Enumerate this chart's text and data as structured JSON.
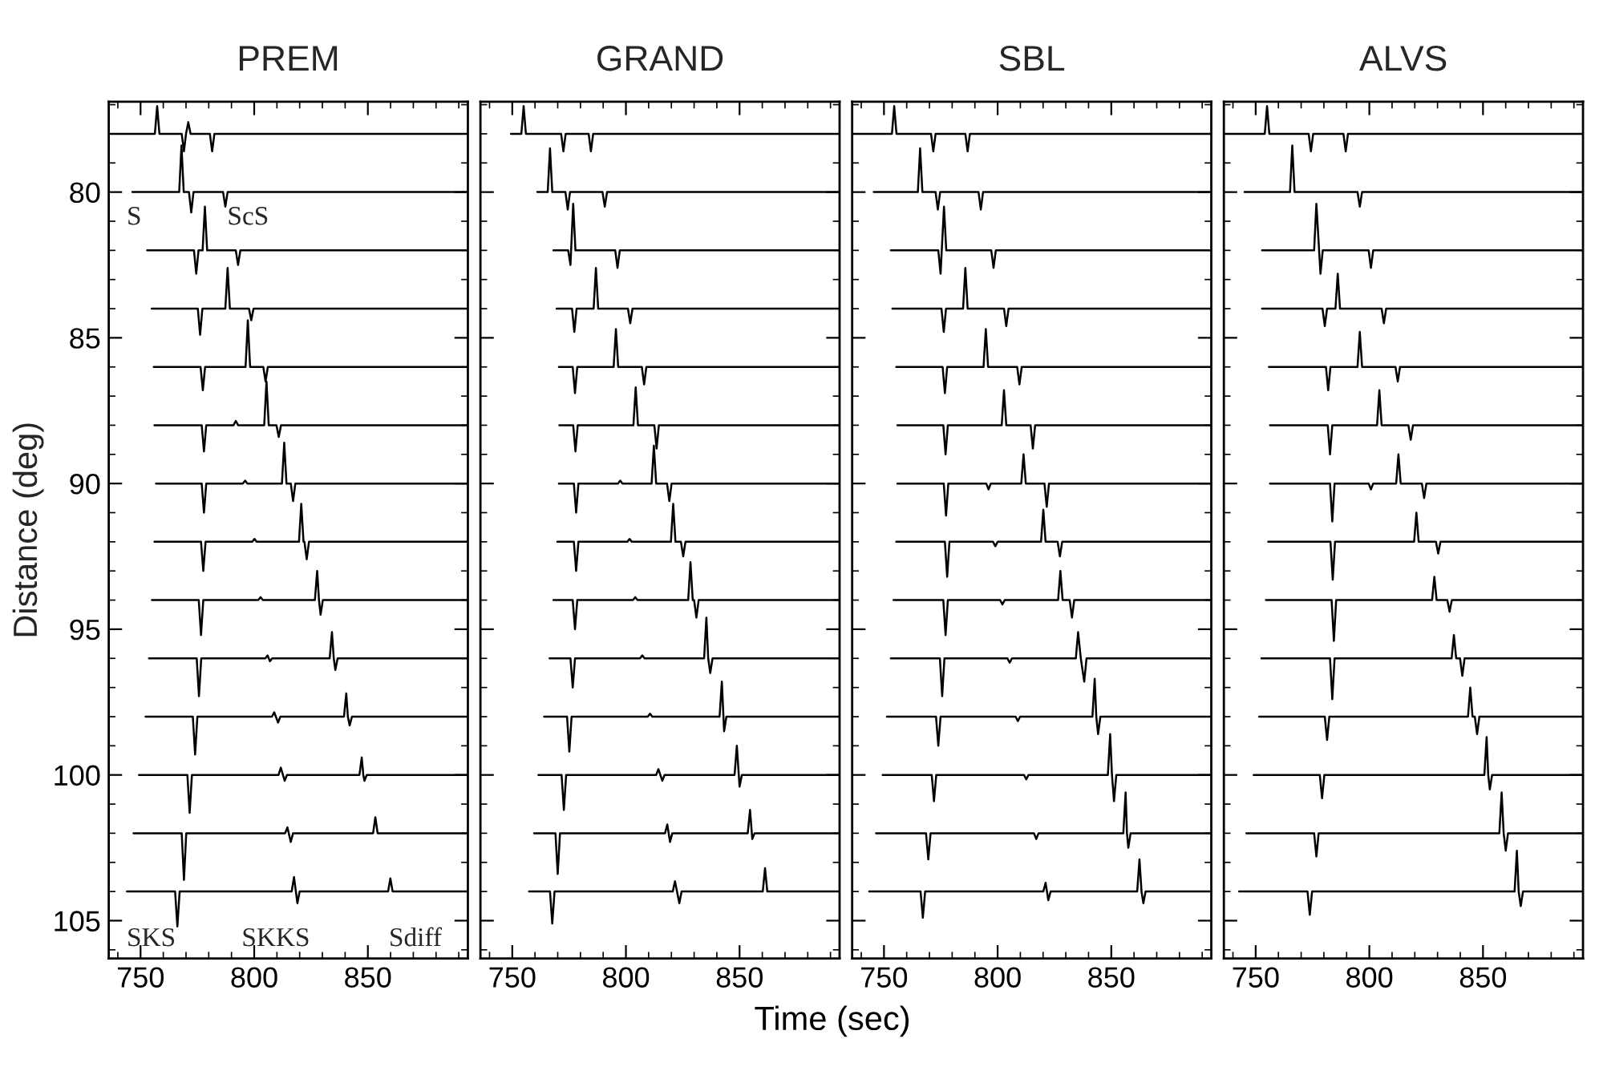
{
  "chart_data": [
    {
      "type": "line",
      "title": "PREM",
      "ylabel": "Distance (deg)",
      "xlim": [
        736,
        894
      ],
      "xticks": [
        750,
        800,
        850
      ],
      "ylim": [
        106.3,
        76.9
      ],
      "yticks": [
        80,
        85,
        90,
        95,
        100,
        105
      ],
      "annotations": [
        "S",
        "ScS",
        "SKS",
        "SKKS",
        "Sdiff"
      ],
      "series": [
        {
          "color": "#000000",
          "x": [
            736,
            756.3,
            757.3,
            758.3,
            768.1,
            769.1,
            770,
            771,
            772,
            780.5,
            781.5,
            782.5,
            894
          ],
          "values": [
            78,
            78,
            77.05,
            78,
            78,
            78.6,
            78,
            77.6,
            78,
            78,
            78.6,
            78,
            78
          ]
        },
        {
          "color": "#000000",
          "x": [
            746.4,
            767,
            768,
            769,
            771.3,
            772.3,
            773.3,
            786.3,
            787.3,
            788.3,
            894
          ],
          "values": [
            80,
            80,
            78.4,
            80,
            80,
            80.7,
            80,
            80,
            80.5,
            80,
            80
          ]
        },
        {
          "color": "#000000",
          "x": [
            752.9,
            773.5,
            774.5,
            775.5,
            777.3,
            778.3,
            779.3,
            791.9,
            792.9,
            793.9,
            894
          ],
          "values": [
            82,
            82,
            82.8,
            82,
            82,
            80.5,
            82,
            82,
            82.5,
            82,
            82
          ]
        },
        {
          "color": "#000000",
          "x": [
            754.9,
            775.2,
            776.2,
            777.2,
            787.3,
            788.3,
            789.3,
            797.7,
            798.7,
            799.7,
            894
          ],
          "values": [
            84,
            84,
            84.9,
            84,
            84,
            82.6,
            84,
            84,
            84.4,
            84,
            84
          ]
        },
        {
          "color": "#000000",
          "x": [
            755.8,
            776.4,
            777.4,
            778.4,
            796.2,
            797.2,
            798.2,
            804,
            805,
            806,
            894
          ],
          "values": [
            86,
            86,
            86.8,
            86,
            86,
            84.4,
            86,
            86,
            86.5,
            86,
            86
          ]
        },
        {
          "color": "#000000",
          "x": [
            756.1,
            776.9,
            777.9,
            778.9,
            790.9,
            791.9,
            792.9,
            804.4,
            805.4,
            806.4,
            809.8,
            810.8,
            811.8,
            894
          ],
          "values": [
            88,
            88,
            88.9,
            88,
            88,
            87.85,
            88,
            88,
            86.5,
            88,
            88,
            88.4,
            88,
            88
          ]
        },
        {
          "color": "#000000",
          "x": [
            756.8,
            776.9,
            777.9,
            778.9,
            795,
            796,
            797,
            812.2,
            813.2,
            814.2,
            816.1,
            817.1,
            818.1,
            894
          ],
          "values": [
            90,
            90,
            91,
            90,
            90,
            89.9,
            90,
            90,
            88.6,
            90,
            90,
            90.6,
            90,
            90
          ]
        },
        {
          "color": "#000000",
          "x": [
            756.1,
            776.6,
            777.6,
            778.6,
            799.1,
            800.1,
            801.1,
            819.7,
            820.7,
            821.7,
            822.1,
            823.1,
            824.1,
            894
          ],
          "values": [
            92,
            92,
            93,
            92,
            92,
            91.9,
            92,
            92,
            90.7,
            92,
            92,
            92.6,
            92,
            92
          ]
        },
        {
          "color": "#000000",
          "x": [
            755,
            775.6,
            776.6,
            777.6,
            801.8,
            802.8,
            803.8,
            826.7,
            827.7,
            828.5,
            829.2,
            830.2,
            894
          ],
          "values": [
            94,
            94,
            95.2,
            94,
            94,
            93.9,
            94,
            94,
            93,
            94,
            94.5,
            94,
            94
          ]
        },
        {
          "color": "#000000",
          "x": [
            753.7,
            774.7,
            775.7,
            776.7,
            804.9,
            805.9,
            806.9,
            807.9,
            833.2,
            834.2,
            835,
            835.7,
            836.7,
            894
          ],
          "values": [
            96,
            96,
            97.3,
            96,
            96,
            95.9,
            96.1,
            96,
            96,
            95.1,
            96,
            96.4,
            96,
            96
          ]
        },
        {
          "color": "#000000",
          "x": [
            752.2,
            773,
            774,
            775,
            807.8,
            808.8,
            810.5,
            811.5,
            839.5,
            840.5,
            841.2,
            842,
            843,
            894
          ],
          "values": [
            98,
            98,
            99.3,
            98,
            98,
            97.85,
            98.2,
            98,
            98,
            97.2,
            98,
            98.3,
            98,
            98
          ]
        },
        {
          "color": "#000000",
          "x": [
            749.3,
            770.6,
            771.6,
            772.6,
            810.7,
            811.7,
            813.4,
            814.4,
            846.3,
            847.3,
            848,
            848.5,
            849.5,
            894
          ],
          "values": [
            100,
            100,
            101.3,
            100,
            100,
            99.75,
            100.2,
            100,
            100,
            99.4,
            100,
            100.2,
            100,
            100
          ]
        },
        {
          "color": "#000000",
          "x": [
            746.9,
            768.1,
            769.1,
            770.1,
            813.6,
            814.6,
            816.1,
            817.1,
            852.3,
            853.3,
            854.3,
            894
          ],
          "values": [
            102,
            102,
            103.6,
            102,
            102,
            101.8,
            102.3,
            102,
            102,
            101.45,
            102,
            102
          ]
        },
        {
          "color": "#000000",
          "x": [
            744,
            765.2,
            766.2,
            767.2,
            816.5,
            817.5,
            819,
            820,
            858.9,
            859.9,
            860.9,
            894
          ],
          "values": [
            104,
            104,
            105.2,
            104,
            104,
            103.5,
            104.4,
            104,
            104,
            103.55,
            104,
            104
          ]
        }
      ]
    },
    {
      "type": "line",
      "title": "GRAND",
      "xlabel": "Time (sec)",
      "xlim": [
        736,
        894
      ],
      "xticks": [
        750,
        800,
        850
      ],
      "ylim": [
        106.3,
        76.9
      ],
      "yticks": [
        80,
        85,
        90,
        95,
        100,
        105
      ],
      "tick_labels": "x",
      "series": [
        {
          "color": "#000000",
          "x": [
            749.4,
            754,
            755,
            756,
            771.5,
            772.5,
            773.5,
            783.6,
            784.6,
            785.6,
            894
          ],
          "values": [
            78,
            78,
            77.05,
            78,
            78,
            78.6,
            78,
            78,
            78.6,
            78,
            78
          ]
        },
        {
          "color": "#000000",
          "x": [
            761,
            765.6,
            766.6,
            767.6,
            773.4,
            774.4,
            775.4,
            789.7,
            790.7,
            791.7,
            894
          ],
          "values": [
            80,
            80,
            78.5,
            80,
            80,
            80.6,
            80,
            80,
            80.5,
            80,
            80
          ]
        },
        {
          "color": "#000000",
          "x": [
            768.1,
            774.6,
            775.6,
            776.8,
            777.8,
            795.3,
            796.3,
            797.3,
            894
          ],
          "values": [
            82,
            82,
            82.5,
            80.4,
            82,
            82,
            82.6,
            82,
            82
          ]
        },
        {
          "color": "#000000",
          "x": [
            769.5,
            776.3,
            777.3,
            778.3,
            785.8,
            786.8,
            787.8,
            800.9,
            801.9,
            802.9,
            894
          ],
          "values": [
            84,
            84,
            84.8,
            84,
            84,
            82.6,
            84,
            84,
            84.5,
            84,
            84
          ]
        },
        {
          "color": "#000000",
          "x": [
            770.5,
            776.6,
            777.6,
            778.6,
            794.6,
            795.6,
            796.6,
            807,
            808,
            809,
            894
          ],
          "values": [
            86,
            86,
            86.9,
            86,
            86,
            84.7,
            86,
            86,
            86.6,
            86,
            86
          ]
        },
        {
          "color": "#000000",
          "x": [
            770.7,
            776.8,
            777.8,
            778.8,
            803.3,
            804.3,
            805.3,
            812.5,
            813.5,
            814.5,
            894
          ],
          "values": [
            88,
            88,
            88.9,
            88,
            88,
            86.7,
            88,
            88,
            88.8,
            88,
            88
          ]
        },
        {
          "color": "#000000",
          "x": [
            770.5,
            777.1,
            778.1,
            779.1,
            796.5,
            797.5,
            798.5,
            811.3,
            812.3,
            813.3,
            818.1,
            819.1,
            820.1,
            894
          ],
          "values": [
            90,
            90,
            91,
            90,
            90,
            89.9,
            90,
            90,
            88.7,
            90,
            90,
            90.6,
            90,
            90
          ]
        },
        {
          "color": "#000000",
          "x": [
            769.8,
            777.1,
            778.1,
            779.1,
            800.6,
            801.6,
            802.6,
            819.8,
            820.8,
            821.8,
            824.2,
            825.2,
            826.2,
            894
          ],
          "values": [
            92,
            92,
            93,
            92,
            92,
            91.9,
            92,
            92,
            90.7,
            92,
            92,
            92.5,
            92,
            92
          ]
        },
        {
          "color": "#000000",
          "x": [
            768.1,
            776.6,
            777.6,
            778.6,
            803.1,
            804.1,
            805.1,
            827.4,
            828.4,
            829.4,
            830,
            831,
            832,
            894
          ],
          "values": [
            94,
            94,
            95,
            94,
            94,
            93.9,
            94,
            94,
            92.7,
            94,
            94,
            94.6,
            94,
            94
          ]
        },
        {
          "color": "#000000",
          "x": [
            766.4,
            775.6,
            776.6,
            777.6,
            806.2,
            807.2,
            808.2,
            834.4,
            835.4,
            836.2,
            837.1,
            838.1,
            894
          ],
          "values": [
            96,
            96,
            97,
            96,
            96,
            95.9,
            96,
            96,
            94.6,
            96,
            96.5,
            96,
            96
          ]
        },
        {
          "color": "#000000",
          "x": [
            764,
            774.1,
            775.1,
            776.1,
            809.6,
            810.6,
            811.6,
            841.2,
            842.2,
            843.2,
            844.2,
            894
          ],
          "values": [
            98,
            98,
            99.2,
            98,
            98,
            97.9,
            98,
            98,
            96.8,
            98.5,
            98,
            98
          ]
        },
        {
          "color": "#000000",
          "x": [
            761.5,
            771.7,
            772.7,
            773.7,
            813.3,
            814.3,
            816,
            817,
            847.8,
            848.8,
            850,
            851,
            894
          ],
          "values": [
            100,
            100,
            101.2,
            100,
            100,
            99.8,
            100.2,
            100,
            100,
            99,
            100.4,
            100,
            100
          ]
        },
        {
          "color": "#000000",
          "x": [
            759.6,
            769,
            770,
            771,
            817.2,
            818.2,
            819.4,
            820.4,
            853.6,
            854.6,
            855.6,
            856.6,
            894
          ],
          "values": [
            102,
            102,
            103.4,
            102,
            102,
            101.7,
            102.3,
            102,
            102,
            101.2,
            102.2,
            102,
            102
          ]
        },
        {
          "color": "#000000",
          "x": [
            757.4,
            766.6,
            767.6,
            768.6,
            820.6,
            821.6,
            823.5,
            824.5,
            860.2,
            861.2,
            862.2,
            894
          ],
          "values": [
            104,
            104,
            105.1,
            104,
            104,
            103.65,
            104.4,
            104,
            104,
            103.2,
            104,
            104
          ]
        }
      ]
    },
    {
      "type": "line",
      "title": "SBL",
      "xlim": [
        736,
        894
      ],
      "xticks": [
        750,
        800,
        850
      ],
      "ylim": [
        106.3,
        76.9
      ],
      "yticks": [
        80,
        85,
        90,
        95,
        100,
        105
      ],
      "tick_labels": "x",
      "series": [
        {
          "color": "#000000",
          "x": [
            736,
            753.5,
            754.5,
            755.5,
            770.7,
            771.7,
            772.7,
            785.8,
            786.8,
            787.8,
            894
          ],
          "values": [
            78,
            78,
            77.05,
            78,
            78,
            78.6,
            78,
            78,
            78.6,
            78,
            78
          ]
        },
        {
          "color": "#000000",
          "x": [
            745.5,
            764.9,
            765.9,
            766.9,
            772.7,
            773.7,
            774.7,
            791.6,
            792.6,
            793.6,
            894
          ],
          "values": [
            80,
            80,
            78.5,
            80,
            80,
            80.6,
            80,
            80,
            80.6,
            80,
            80
          ]
        },
        {
          "color": "#000000",
          "x": [
            753,
            773.9,
            774.9,
            776.4,
            777.4,
            797.2,
            798.2,
            799.2,
            894
          ],
          "values": [
            82,
            82,
            82.8,
            80.5,
            82,
            82,
            82.6,
            82,
            82
          ]
        },
        {
          "color": "#000000",
          "x": [
            753.7,
            775.3,
            776.3,
            777.3,
            784.8,
            785.8,
            786.8,
            802.8,
            803.8,
            804.8,
            894
          ],
          "values": [
            84,
            84,
            84.8,
            84,
            84,
            82.6,
            84,
            84,
            84.6,
            84,
            84
          ]
        },
        {
          "color": "#000000",
          "x": [
            755.4,
            775.8,
            776.8,
            777.8,
            793.8,
            794.8,
            795.8,
            808.6,
            809.6,
            810.6,
            894
          ],
          "values": [
            86,
            86,
            86.9,
            86,
            86,
            84.7,
            86,
            86,
            86.6,
            86,
            86
          ]
        },
        {
          "color": "#000000",
          "x": [
            755.9,
            776.1,
            777.1,
            778.1,
            801.8,
            802.8,
            803.8,
            814.5,
            815.5,
            816.5,
            894
          ],
          "values": [
            88,
            88,
            89,
            88,
            88,
            86.8,
            88,
            88,
            88.8,
            88,
            88
          ]
        },
        {
          "color": "#000000",
          "x": [
            755.9,
            776.3,
            777.3,
            778.3,
            795,
            796,
            797,
            810.4,
            811.4,
            812.4,
            820.6,
            821.6,
            822.6,
            894
          ],
          "values": [
            90,
            90,
            91.1,
            90,
            90,
            90.2,
            90,
            90,
            89,
            90,
            90,
            90.8,
            90,
            90
          ]
        },
        {
          "color": "#000000",
          "x": [
            755.4,
            776.8,
            777.8,
            778.8,
            798,
            799,
            800,
            819.1,
            820.1,
            821.1,
            826.4,
            827.4,
            828.4,
            894
          ],
          "values": [
            92,
            92,
            93.2,
            92,
            92,
            92.15,
            92,
            92,
            90.9,
            92,
            92,
            92.5,
            92,
            92
          ]
        },
        {
          "color": "#000000",
          "x": [
            754.2,
            776.1,
            777.1,
            778.1,
            801.1,
            802.1,
            803.1,
            826.6,
            827.6,
            828.6,
            831.7,
            832.7,
            833.7,
            894
          ],
          "values": [
            94,
            94,
            95.2,
            94,
            94,
            94.15,
            94,
            94,
            93,
            94,
            94,
            94.6,
            94,
            94
          ]
        },
        {
          "color": "#000000",
          "x": [
            753,
            774.6,
            775.6,
            776.6,
            804.3,
            805.3,
            806.3,
            834.4,
            835.4,
            836.6,
            838.1,
            839.1,
            894
          ],
          "values": [
            96,
            96,
            97.3,
            96,
            96,
            96.15,
            96,
            96,
            95.1,
            96,
            96.8,
            96,
            96
          ]
        },
        {
          "color": "#000000",
          "x": [
            751.3,
            772.9,
            773.9,
            774.9,
            807.9,
            808.9,
            809.9,
            841.7,
            842.7,
            843.4,
            844.2,
            845.2,
            894
          ],
          "values": [
            98,
            98,
            99,
            98,
            98,
            98.15,
            98,
            98,
            96.7,
            98,
            98.6,
            98,
            98
          ]
        },
        {
          "color": "#000000",
          "x": [
            749.4,
            771,
            772,
            773,
            811.6,
            812.6,
            813.6,
            848.5,
            849.5,
            850.3,
            851.2,
            852.2,
            894
          ],
          "values": [
            100,
            100,
            100.9,
            100,
            100,
            100.15,
            100,
            100,
            98.6,
            100,
            100.9,
            100,
            100
          ]
        },
        {
          "color": "#000000",
          "x": [
            746.5,
            768.5,
            769.5,
            770.5,
            816,
            817,
            818,
            855.3,
            856.3,
            856.9,
            857.5,
            858.5,
            894
          ],
          "values": [
            102,
            102,
            102.9,
            102,
            102,
            102.2,
            102,
            102,
            100.6,
            102,
            102.5,
            102,
            102
          ]
        },
        {
          "color": "#000000",
          "x": [
            743.5,
            766.1,
            767.1,
            768.1,
            820.1,
            821.1,
            822.3,
            823.3,
            861.4,
            862.4,
            863.3,
            864.1,
            865.1,
            894
          ],
          "values": [
            104,
            104,
            104.9,
            104,
            104,
            103.7,
            104.3,
            104,
            104,
            102.9,
            104,
            104.4,
            104,
            104
          ]
        }
      ]
    },
    {
      "type": "line",
      "title": "ALVS",
      "xlim": [
        736,
        894
      ],
      "xticks": [
        750,
        800,
        850
      ],
      "ylim": [
        106.3,
        76.9
      ],
      "yticks": [
        80,
        85,
        90,
        95,
        100,
        105
      ],
      "tick_labels": "x",
      "series": [
        {
          "color": "#000000",
          "x": [
            736,
            754,
            755,
            756,
            773.3,
            774.3,
            775.3,
            788.6,
            789.6,
            790.6,
            894
          ],
          "values": [
            78,
            78,
            77.05,
            78,
            78,
            78.6,
            78,
            78,
            78.6,
            78,
            78
          ]
        },
        {
          "color": "#000000",
          "x": [
            745.1,
            765.1,
            766.1,
            767.1,
            794.8,
            795.8,
            796.8,
            894
          ],
          "values": [
            80,
            80,
            78.4,
            80,
            80,
            80.5,
            80,
            80
          ]
        },
        {
          "color": "#000000",
          "x": [
            752.8,
            775.7,
            776.7,
            778.5,
            779.5,
            799.7,
            800.7,
            801.7,
            894
          ],
          "values": [
            82,
            82,
            80.4,
            82.8,
            82,
            82,
            82.6,
            82,
            82
          ]
        },
        {
          "color": "#000000",
          "x": [
            752.8,
            779.4,
            780.4,
            781.4,
            785.1,
            786.1,
            787.1,
            805.4,
            806.4,
            807.4,
            894
          ],
          "values": [
            84,
            84,
            84.6,
            84,
            84,
            82.8,
            84,
            84,
            84.5,
            84,
            84
          ]
        },
        {
          "color": "#000000",
          "x": [
            755.8,
            780.9,
            781.9,
            782.9,
            794.8,
            795.8,
            796.8,
            811.5,
            812.5,
            813.5,
            894
          ],
          "values": [
            86,
            86,
            86.8,
            86,
            86,
            84.8,
            86,
            86,
            86.5,
            86,
            86
          ]
        },
        {
          "color": "#000000",
          "x": [
            756.3,
            781.7,
            782.7,
            783.7,
            803.4,
            804.4,
            805.4,
            817.2,
            818.2,
            819.2,
            894
          ],
          "values": [
            88,
            88,
            89,
            88,
            88,
            86.8,
            88,
            88,
            88.5,
            88,
            88
          ]
        },
        {
          "color": "#000000",
          "x": [
            756.3,
            782.7,
            783.7,
            784.7,
            799.7,
            800.7,
            801.7,
            811.8,
            812.8,
            813.8,
            823.1,
            824.1,
            825.1,
            894
          ],
          "values": [
            90,
            90,
            91.3,
            90,
            90,
            90.2,
            90,
            90,
            89,
            90,
            90,
            90.5,
            90,
            90
          ]
        },
        {
          "color": "#000000",
          "x": [
            755.5,
            782.9,
            783.9,
            784.9,
            819.7,
            820.7,
            821.7,
            829.3,
            830.3,
            831.3,
            894
          ],
          "values": [
            92,
            92,
            93.3,
            92,
            92,
            91,
            92,
            92,
            92.4,
            92,
            92
          ]
        },
        {
          "color": "#000000",
          "x": [
            754.5,
            783.4,
            784.4,
            785.4,
            827.6,
            828.6,
            829.6,
            834.3,
            835.3,
            836.3,
            894
          ],
          "values": [
            94,
            94,
            95.4,
            94,
            94,
            93.2,
            94,
            94,
            94.4,
            94,
            94
          ]
        },
        {
          "color": "#000000",
          "x": [
            752.5,
            782.7,
            783.7,
            784.7,
            836.2,
            837.2,
            838.2,
            839.9,
            840.9,
            841.9,
            894
          ],
          "values": [
            96,
            96,
            97.4,
            96,
            96,
            95.2,
            96,
            96,
            96.6,
            96,
            96
          ]
        },
        {
          "color": "#000000",
          "x": [
            751.5,
            780.4,
            781.4,
            782.4,
            843.4,
            844.4,
            845.4,
            846.4,
            847.4,
            848.4,
            894
          ],
          "values": [
            98,
            98,
            98.8,
            98,
            98,
            97,
            98,
            98,
            98.6,
            98,
            98
          ]
        },
        {
          "color": "#000000",
          "x": [
            749.1,
            778.2,
            779.2,
            780.2,
            850.6,
            851.6,
            852.3,
            853,
            854,
            894
          ],
          "values": [
            100,
            100,
            100.8,
            100,
            100,
            98.7,
            100,
            100.5,
            100,
            100
          ]
        },
        {
          "color": "#000000",
          "x": [
            745.9,
            775.7,
            776.7,
            777.7,
            857.2,
            858.2,
            859.1,
            860,
            861,
            894
          ],
          "values": [
            102,
            102,
            102.8,
            102,
            102,
            100.6,
            102,
            102.6,
            102,
            102
          ]
        },
        {
          "color": "#000000",
          "x": [
            742.7,
            772.8,
            773.8,
            774.8,
            863.9,
            864.9,
            865.7,
            866.6,
            867.6,
            894
          ],
          "values": [
            104,
            104,
            104.8,
            104,
            104,
            102.6,
            104,
            104.5,
            104,
            104
          ]
        }
      ]
    }
  ]
}
